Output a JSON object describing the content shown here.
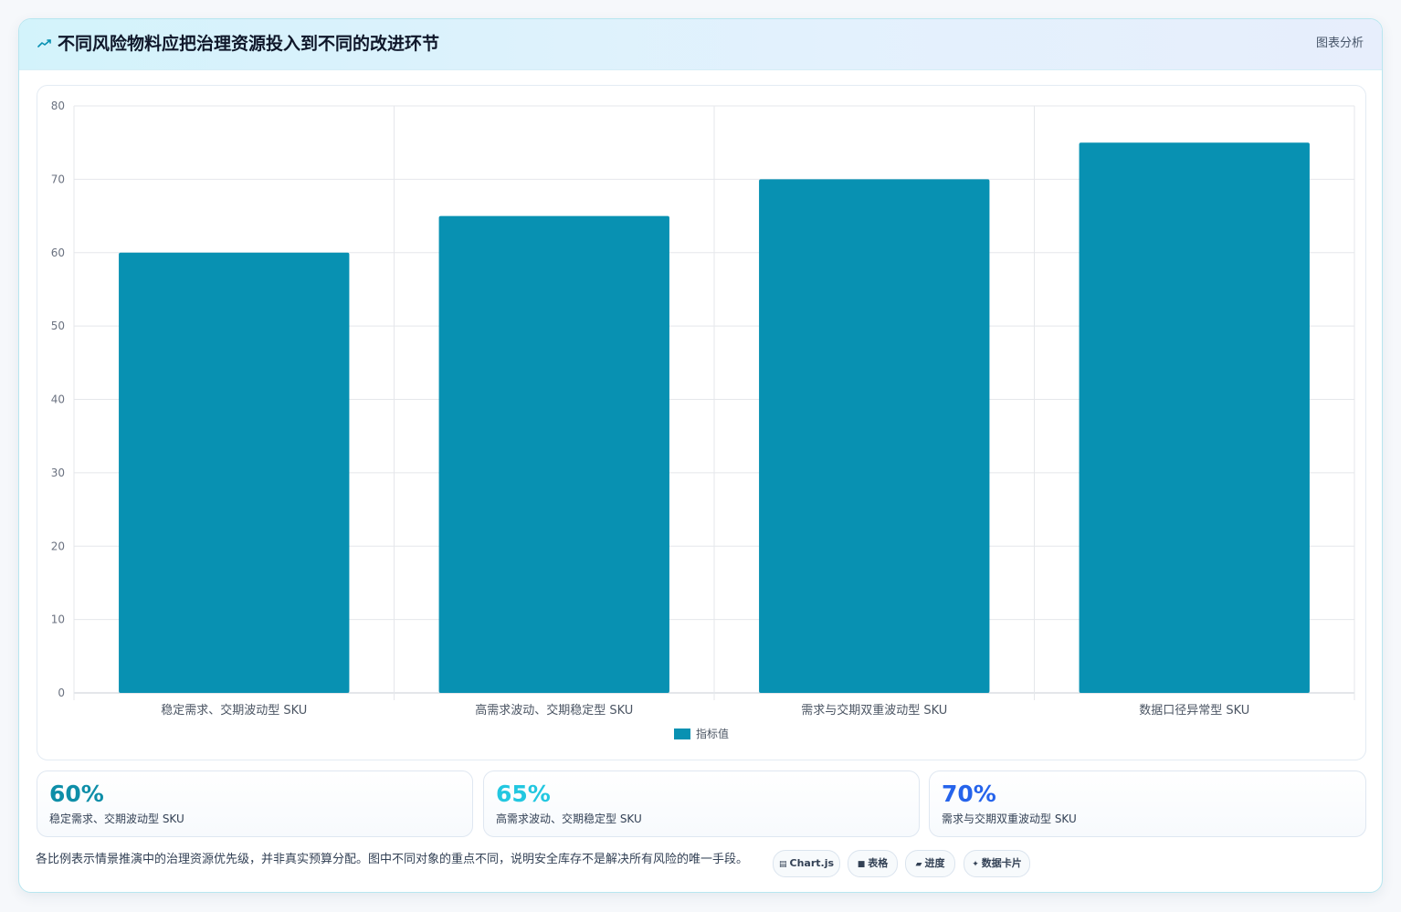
{
  "header": {
    "title": "不同风险物料应把治理资源投入到不同的改进环节",
    "tag": "图表分析",
    "icon": "trend-line-icon"
  },
  "colors": {
    "bar": "#0891b2",
    "grid": "#e5e7eb",
    "stat_1": "#0e8ea8",
    "stat_2": "#22c7e0",
    "stat_3": "#2563eb"
  },
  "chart_data": {
    "type": "bar",
    "categories": [
      "稳定需求、交期波动型 SKU",
      "高需求波动、交期稳定型 SKU",
      "需求与交期双重波动型 SKU",
      "数据口径异常型 SKU"
    ],
    "series": [
      {
        "name": "指标值",
        "values": [
          60,
          65,
          70,
          75
        ]
      }
    ],
    "yticks": [
      0,
      10,
      20,
      30,
      40,
      50,
      60,
      70,
      80
    ],
    "ylim": [
      0,
      80
    ],
    "grid": true,
    "legend": "bottom",
    "title": "",
    "xlabel": "",
    "ylabel": ""
  },
  "stats": [
    {
      "value": "60%",
      "label": "稳定需求、交期波动型 SKU"
    },
    {
      "value": "65%",
      "label": "高需求波动、交期稳定型 SKU"
    },
    {
      "value": "70%",
      "label": "需求与交期双重波动型 SKU"
    }
  ],
  "footer": {
    "note": "各比例表示情景推演中的治理资源优先级，并非真实预算分配。图中不同对象的重点不同，说明安全库存不是解决所有风险的唯一手段。",
    "chips": [
      {
        "icon": "chart-icon",
        "glyph": "▤",
        "label": "Chart.js"
      },
      {
        "icon": "table-icon",
        "glyph": "■",
        "label": "表格"
      },
      {
        "icon": "progress-icon",
        "glyph": "▰",
        "label": "进度"
      },
      {
        "icon": "sparkle-icon",
        "glyph": "✦",
        "label": "数据卡片"
      }
    ]
  }
}
